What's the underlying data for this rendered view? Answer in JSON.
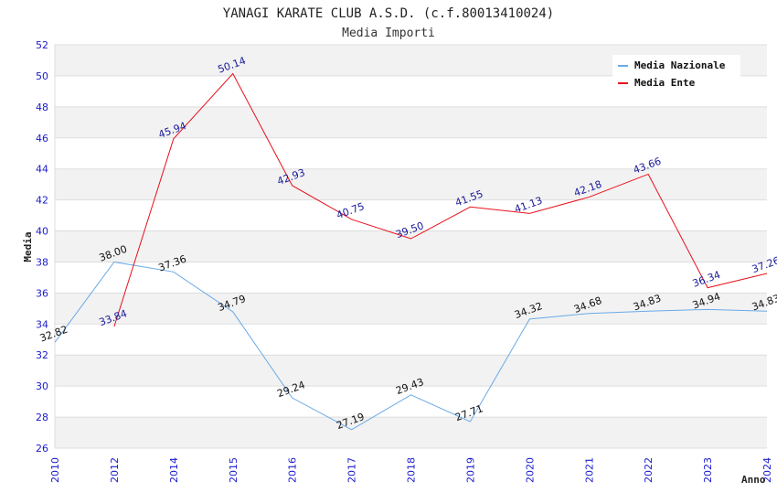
{
  "chart_data": {
    "type": "line",
    "title": "YANAGI KARATE CLUB A.S.D. (c.f.80013410024)",
    "subtitle": "Media Importi",
    "xlabel": "Anno",
    "ylabel": "Media",
    "ylim": [
      26,
      52
    ],
    "yticks": [
      "26",
      "28",
      "30",
      "32",
      "34",
      "36",
      "38",
      "40",
      "42",
      "44",
      "46",
      "48",
      "50",
      "52"
    ],
    "categories": [
      "2010",
      "2012",
      "2014",
      "2015",
      "2016",
      "2017",
      "2018",
      "2019",
      "2020",
      "2021",
      "2022",
      "2023",
      "2024"
    ],
    "legend_position": "top-right",
    "series": [
      {
        "name": "Media Nazionale",
        "color": "#6aaae8",
        "values": [
          32.82,
          38.0,
          37.36,
          34.79,
          29.24,
          27.19,
          29.43,
          27.71,
          34.32,
          34.68,
          34.83,
          34.94,
          34.83
        ],
        "labels": [
          "32.82",
          "38.00",
          "37.36",
          "34.79",
          "29.24",
          "27.19",
          "29.43",
          "27.71",
          "34.32",
          "34.68",
          "34.83",
          "34.94",
          "34.83"
        ]
      },
      {
        "name": "Media Ente",
        "color": "#e8101a",
        "values": [
          null,
          33.84,
          45.94,
          50.14,
          42.93,
          40.75,
          39.5,
          41.55,
          41.13,
          42.18,
          43.66,
          36.34,
          37.26
        ],
        "labels": [
          null,
          "33.84",
          "45.94",
          "50.14",
          "42.93",
          "40.75",
          "39.50",
          "41.55",
          "41.13",
          "42.18",
          "43.66",
          "36.34",
          "37.26"
        ]
      }
    ]
  }
}
